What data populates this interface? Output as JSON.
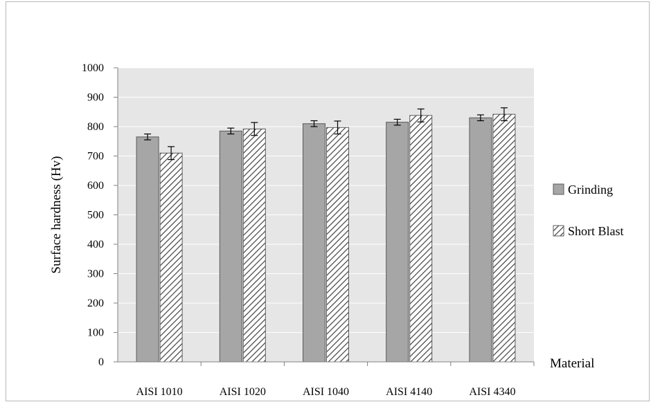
{
  "chart_data": {
    "type": "bar",
    "title": "",
    "xlabel": "Material",
    "ylabel": "Surface  hardness  (Hv)",
    "ylim": [
      0,
      1000
    ],
    "ytick_step": 100,
    "grid": true,
    "legend_position": "right",
    "categories": [
      "AISI 1010",
      "AISI 1020",
      "AISI 1040",
      "AISI 4140",
      "AISI 4340"
    ],
    "series": [
      {
        "name": "Grinding",
        "pattern": "solid",
        "color": "#a6a6a6",
        "values": [
          765,
          785,
          810,
          815,
          830
        ],
        "error": [
          10,
          10,
          10,
          10,
          10
        ]
      },
      {
        "name": "Short Blast",
        "pattern": "diagonal-hatch",
        "color": "#ffffff",
        "values": [
          710,
          792,
          797,
          838,
          842
        ],
        "error": [
          22,
          22,
          22,
          22,
          22
        ]
      }
    ],
    "colors": {
      "plot_background": "#e6e6e6",
      "gridline": "#ffffff",
      "bar_outline": "#595959",
      "hatch": "#404040"
    }
  }
}
